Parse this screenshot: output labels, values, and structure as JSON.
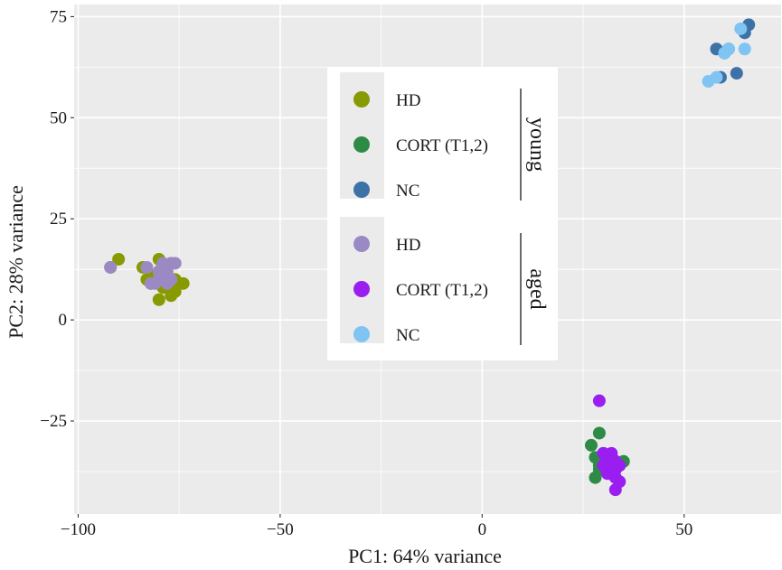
{
  "chart_data": {
    "type": "scatter",
    "title": "",
    "xlabel": "PC1: 64% variance",
    "ylabel": "PC2: 28% variance",
    "xlim": [
      -101,
      74
    ],
    "ylim": [
      -48,
      78
    ],
    "xticks": [
      -100,
      -50,
      0,
      50
    ],
    "xtick_labels": [
      "−100",
      "−50",
      "0",
      "50"
    ],
    "yticks": [
      -25,
      0,
      25,
      50,
      75
    ],
    "ytick_labels": [
      "−25",
      "0",
      "25",
      "50",
      "75"
    ],
    "grid": true,
    "legend_position": "center",
    "legend_groups": [
      {
        "label": "young",
        "entries": [
          "HD",
          "CORT (T1,2)",
          "NC"
        ]
      },
      {
        "label": "aged",
        "entries": [
          "HD",
          "CORT (T1,2)",
          "NC"
        ]
      }
    ],
    "series": [
      {
        "name": "HD",
        "group": "young",
        "color": "#879a00",
        "points": [
          [
            -90,
            15
          ],
          [
            -92,
            13
          ],
          [
            -84,
            13
          ],
          [
            -83,
            10
          ],
          [
            -80,
            15
          ],
          [
            -81,
            11
          ],
          [
            -79,
            8
          ],
          [
            -78,
            12
          ],
          [
            -77,
            6
          ],
          [
            -75,
            9
          ],
          [
            -74,
            9
          ],
          [
            -76,
            10
          ],
          [
            -77,
            14
          ],
          [
            -80,
            5
          ],
          [
            -82,
            9
          ],
          [
            -78,
            10
          ],
          [
            -76,
            7
          ],
          [
            -80,
            12
          ]
        ]
      },
      {
        "name": "CORT (T1,2)",
        "group": "young",
        "color": "#2e8b46",
        "points": [
          [
            29,
            -28
          ],
          [
            27,
            -31
          ],
          [
            28,
            -34
          ],
          [
            29,
            -36
          ],
          [
            28,
            -39
          ],
          [
            31,
            -37
          ],
          [
            33,
            -35
          ],
          [
            35,
            -35
          ],
          [
            30,
            -33
          ],
          [
            32,
            -38
          ],
          [
            34,
            -36
          ],
          [
            29,
            -37
          ]
        ]
      },
      {
        "name": "NC",
        "group": "young",
        "color": "#3d72a6",
        "points": [
          [
            58,
            67
          ],
          [
            60,
            66
          ],
          [
            61,
            67
          ],
          [
            66,
            73
          ],
          [
            65,
            71
          ],
          [
            59,
            60
          ],
          [
            63,
            61
          ]
        ]
      },
      {
        "name": "HD",
        "group": "aged",
        "color": "#9b89c4",
        "points": [
          [
            -92,
            13
          ],
          [
            -83,
            13
          ],
          [
            -82,
            9
          ],
          [
            -80,
            10
          ],
          [
            -79,
            14
          ],
          [
            -78,
            12
          ],
          [
            -77,
            14
          ],
          [
            -76,
            14
          ],
          [
            -78,
            9
          ],
          [
            -80,
            12
          ],
          [
            -77,
            10
          ],
          [
            -81,
            9
          ]
        ]
      },
      {
        "name": "CORT (T1,2)",
        "group": "aged",
        "color": "#9b1ef0",
        "points": [
          [
            29,
            -20
          ],
          [
            30,
            -33
          ],
          [
            31,
            -34
          ],
          [
            32,
            -35
          ],
          [
            31,
            -36
          ],
          [
            33,
            -37
          ],
          [
            32,
            -38
          ],
          [
            34,
            -36
          ],
          [
            33,
            -39
          ],
          [
            34,
            -40
          ],
          [
            33,
            -42
          ],
          [
            30,
            -36
          ],
          [
            32,
            -33
          ],
          [
            31,
            -38
          ],
          [
            33,
            -35
          ]
        ]
      },
      {
        "name": "NC",
        "group": "aged",
        "color": "#7fc4f2",
        "points": [
          [
            56,
            59
          ],
          [
            58,
            60
          ],
          [
            61,
            67
          ],
          [
            64,
            72
          ],
          [
            65,
            67
          ],
          [
            60,
            66
          ]
        ]
      }
    ]
  }
}
